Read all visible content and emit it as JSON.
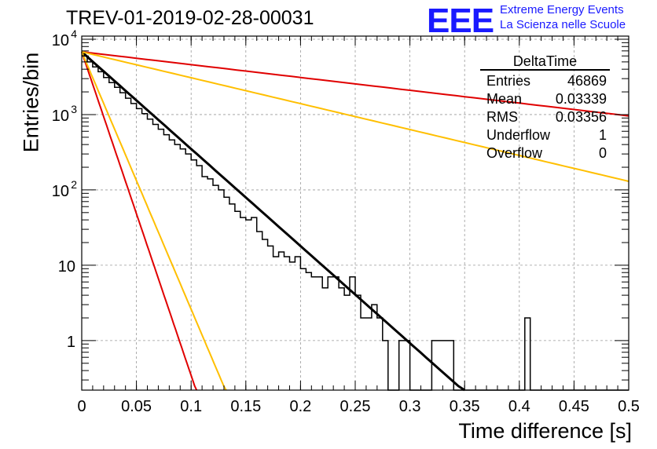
{
  "header": {
    "title": "TREV-01-2019-02-28-00031",
    "logo": "EEE",
    "logo_line1": "Extreme Energy Events",
    "logo_line2": "La Scienza nelle Scuole"
  },
  "stats": {
    "title": "DeltaTime",
    "rows": [
      {
        "label": "Entries",
        "value": "46869"
      },
      {
        "label": "Mean",
        "value": "0.03339"
      },
      {
        "label": "RMS",
        "value": "0.03356"
      },
      {
        "label": "Underflow",
        "value": "1"
      },
      {
        "label": "Overflow",
        "value": "0"
      }
    ]
  },
  "chart_data": {
    "type": "line",
    "xlabel": "Time difference [s]",
    "ylabel": "Entries/bin",
    "xlim": [
      0,
      0.5
    ],
    "ylim": [
      0.22,
      11000
    ],
    "yscale": "log",
    "grid": true,
    "x_ticks": [
      "0",
      "0.05",
      "0.1",
      "0.15",
      "0.2",
      "0.25",
      "0.3",
      "0.35",
      "0.4",
      "0.45",
      "0.5"
    ],
    "y_ticks": [
      {
        "label": "10",
        "sup": "4",
        "value": 10000
      },
      {
        "label": "10",
        "sup": "3",
        "value": 1000
      },
      {
        "label": "10",
        "sup": "2",
        "value": 100
      },
      {
        "label": "10",
        "sup": "",
        "value": 10
      },
      {
        "label": "1",
        "sup": "",
        "value": 1
      }
    ],
    "colors": {
      "histogram": "#000000",
      "fit": "#000000",
      "red": "#e00000",
      "orange": "#ffbf00"
    },
    "histogram": {
      "bin_width": 0.005,
      "x_start": 0,
      "values": [
        6000,
        5000,
        4300,
        3700,
        3100,
        2650,
        2300,
        1950,
        1650,
        1400,
        1200,
        1030,
        870,
        740,
        640,
        540,
        460,
        400,
        350,
        300,
        250,
        210,
        150,
        140,
        115,
        100,
        80,
        65,
        52,
        43,
        40,
        43,
        28,
        22,
        18,
        13,
        15,
        13,
        11,
        13,
        9,
        8,
        7,
        7,
        5,
        7,
        7,
        5,
        4,
        7,
        4,
        2,
        2,
        3,
        2,
        1,
        0,
        0,
        1,
        1,
        0,
        0,
        0,
        0,
        1,
        1,
        1,
        1,
        0,
        0,
        0,
        0,
        0,
        0,
        0,
        0,
        0,
        0,
        0,
        0,
        0,
        2,
        0,
        0,
        0,
        0,
        0,
        0,
        0,
        0,
        0,
        0,
        0,
        0,
        0,
        0,
        0,
        0,
        0,
        0
      ]
    },
    "curves": [
      {
        "color": "#000000",
        "x": [
          0,
          0.35
        ],
        "y": [
          6800,
          0.21
        ]
      },
      {
        "color": "#e00000",
        "x": [
          0,
          0.105
        ],
        "y": [
          6800,
          0.21
        ]
      },
      {
        "color": "#ffbf00",
        "x": [
          0,
          0.132
        ],
        "y": [
          6800,
          0.21
        ]
      },
      {
        "color": "#e00000",
        "x": [
          0,
          0.5
        ],
        "y": [
          6800,
          960
        ]
      },
      {
        "color": "#ffbf00",
        "x": [
          0,
          0.5
        ],
        "y": [
          6800,
          130
        ]
      }
    ]
  }
}
